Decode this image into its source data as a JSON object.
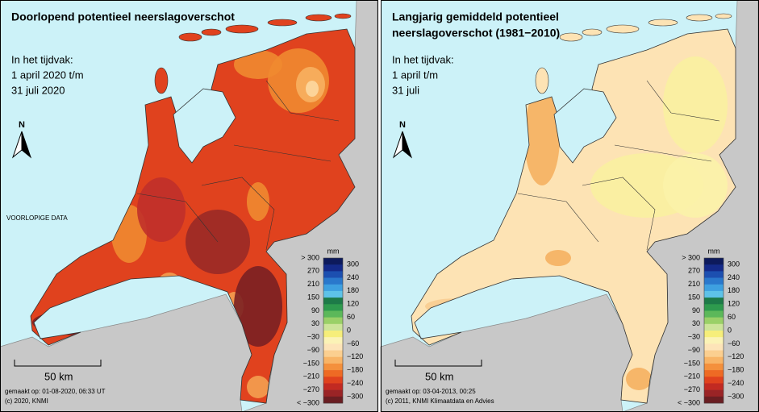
{
  "panels": [
    {
      "title": [
        "Doorlopend potentieel neerslagoverschot"
      ],
      "period": [
        "In het tijdvak:",
        "1 april 2020 t/m",
        "31 juli 2020"
      ],
      "north": "N",
      "note": "VOORLOPIGE DATA",
      "scale": "50 km",
      "footer": [
        "gemaakt op: 01-08-2020, 06:33 UT",
        "(c) 2020, KNMI"
      ],
      "legend": {
        "unit": "mm"
      }
    },
    {
      "title": [
        "Langjarig gemiddeld potentieel",
        "neerslagoverschot (1981−2010)"
      ],
      "period": [
        "In het tijdvak:",
        "1 april t/m",
        "31 juli"
      ],
      "north": "N",
      "scale": "50 km",
      "footer": [
        "gemaakt op: 03-04-2013, 00:25",
        "(c) 2011, KNMI Klimaatdata en Advies"
      ],
      "legend": {
        "unit": "mm"
      }
    }
  ],
  "legend": {
    "left_labels": [
      "> 300",
      "270",
      "210",
      "150",
      "90",
      "30",
      "−30",
      "−90",
      "−150",
      "−210",
      "−270",
      "< −300"
    ],
    "right_labels": [
      "300",
      "240",
      "180",
      "120",
      "60",
      "0",
      "−60",
      "−120",
      "−180",
      "−240",
      "−300"
    ],
    "colors": [
      "#0d1a5c",
      "#142a8a",
      "#1c4fb0",
      "#2a78cc",
      "#3ea0e0",
      "#5ec2e8",
      "#1d7a48",
      "#2e9a4e",
      "#5cb85a",
      "#9ad068",
      "#cde49a",
      "#f6ee7a",
      "#fbf3b6",
      "#fde4b8",
      "#fbcf90",
      "#f8b466",
      "#f4903c",
      "#ee6a24",
      "#e0421e",
      "#c22a22",
      "#9a2426",
      "#6a1e22"
    ]
  }
}
